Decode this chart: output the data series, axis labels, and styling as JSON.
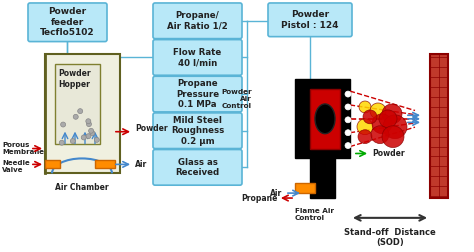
{
  "bg_color": "#ffffff",
  "light_blue_box_color": "#b8e8f8",
  "light_blue_border": "#5ab4d6",
  "powder_feeder_label": "Powder\nfeeder\nTecflo5102",
  "powder_pistol_label": "Powder\nPistol : 124",
  "boxes": [
    "Propane/\nAir Ratio 1/2",
    "Flow Rate\n40 l/min",
    "Propane\nPressure\n0.1 MPa",
    "Mild Steel\nRoughness\n0.2 μm",
    "Glass as\nReceived"
  ],
  "left_labels": [
    "Porous\nMembrane",
    "Needle\nValve",
    "Powder\nHopper",
    "Air Chamber",
    "Powder"
  ],
  "right_labels": [
    "Powder\nAir\nControl",
    "Flame Air\nControl",
    "Air",
    "Propane",
    "Powder",
    "Stand-off  Distance\n(SOD)"
  ],
  "title_color": "#000000",
  "red_color": "#cc0000",
  "dark_red": "#8b0000",
  "orange_color": "#ff8c00",
  "green_color": "#00aa00",
  "blue_color": "#4488cc",
  "olive_color": "#808000",
  "arrow_red": "#cc0000",
  "arrow_blue": "#4488cc"
}
